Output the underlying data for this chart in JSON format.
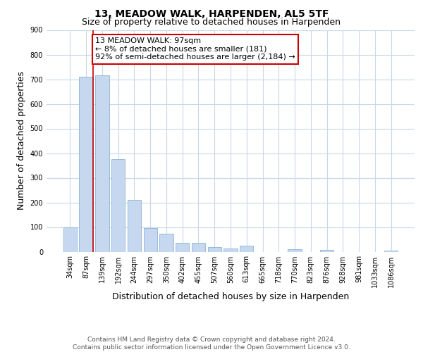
{
  "title": "13, MEADOW WALK, HARPENDEN, AL5 5TF",
  "subtitle": "Size of property relative to detached houses in Harpenden",
  "xlabel": "Distribution of detached houses by size in Harpenden",
  "ylabel": "Number of detached properties",
  "bar_labels": [
    "34sqm",
    "87sqm",
    "139sqm",
    "192sqm",
    "244sqm",
    "297sqm",
    "350sqm",
    "402sqm",
    "455sqm",
    "507sqm",
    "560sqm",
    "613sqm",
    "665sqm",
    "718sqm",
    "770sqm",
    "823sqm",
    "876sqm",
    "928sqm",
    "981sqm",
    "1033sqm",
    "1086sqm"
  ],
  "bar_values": [
    100,
    710,
    715,
    375,
    210,
    97,
    73,
    35,
    37,
    20,
    12,
    25,
    0,
    0,
    10,
    0,
    8,
    0,
    0,
    0,
    5
  ],
  "bar_color": "#c5d8f0",
  "bar_edge_color": "#8ab4d8",
  "annotation_title": "13 MEADOW WALK: 97sqm",
  "annotation_line1": "← 8% of detached houses are smaller (181)",
  "annotation_line2": "92% of semi-detached houses are larger (2,184) →",
  "annotation_box_color": "#ffffff",
  "annotation_border_color": "#cc0000",
  "red_line_color": "#cc0000",
  "ylim": [
    0,
    900
  ],
  "yticks": [
    0,
    100,
    200,
    300,
    400,
    500,
    600,
    700,
    800,
    900
  ],
  "footer_line1": "Contains HM Land Registry data © Crown copyright and database right 2024.",
  "footer_line2": "Contains public sector information licensed under the Open Government Licence v3.0.",
  "bg_color": "#ffffff",
  "grid_color": "#c8d8e8",
  "title_fontsize": 10,
  "subtitle_fontsize": 9,
  "axis_label_fontsize": 9,
  "tick_fontsize": 7,
  "annotation_fontsize": 8,
  "footer_fontsize": 6.5
}
